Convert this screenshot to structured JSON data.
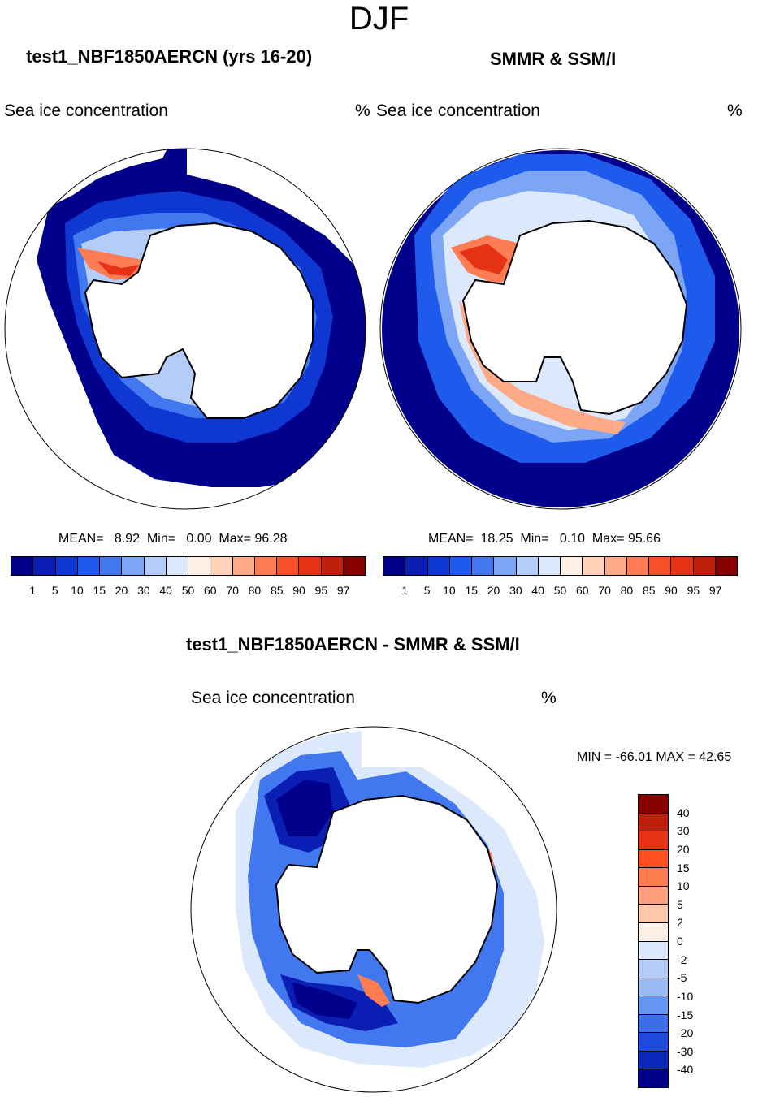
{
  "figure": {
    "season": "DJF",
    "left_panel": {
      "title": "test1_NBF1850AERCN (yrs 16-20)",
      "variable": "Sea ice concentration",
      "units": "%",
      "stats": {
        "mean_label": "MEAN=",
        "mean": "8.92",
        "min_label": "Min=",
        "min": "0.00",
        "max_label": "Max=",
        "max": "96.28"
      }
    },
    "right_panel": {
      "title": "SMMR & SSM/I",
      "variable": "Sea ice concentration",
      "units": "%",
      "stats": {
        "mean_label": "MEAN=",
        "mean": "18.25",
        "min_label": "Min=",
        "min": "0.10",
        "max_label": "Max=",
        "max": "95.66"
      }
    },
    "diff_panel": {
      "title": "test1_NBF1850AERCN - SMMR & SSM/I",
      "variable": "Sea ice concentration",
      "units": "%",
      "minmax": "MIN = -66.01 MAX =  42.65"
    }
  },
  "chart_data": [
    {
      "type": "heatmap",
      "title": "test1_NBF1850AERCN (yrs 16-20)",
      "projection": "south polar stereographic",
      "variable": "Sea ice concentration (%)",
      "mean": 8.92,
      "min": 0.0,
      "max": 96.28,
      "colorbar_levels": [
        1,
        5,
        10,
        15,
        20,
        30,
        40,
        50,
        60,
        70,
        80,
        85,
        90,
        95,
        97
      ],
      "colorbar_colors": [
        "#00008b",
        "#0a1eb4",
        "#0f37d2",
        "#1e5aeb",
        "#4178f0",
        "#7da5f5",
        "#b4ccf8",
        "#dce8fb",
        "#fff0e6",
        "#ffd2b9",
        "#ffaa87",
        "#ff7d55",
        "#f55028",
        "#e63214",
        "#be1e0a",
        "#870000"
      ]
    },
    {
      "type": "heatmap",
      "title": "SMMR & SSM/I",
      "projection": "south polar stereographic",
      "variable": "Sea ice concentration (%)",
      "mean": 18.25,
      "min": 0.1,
      "max": 95.66,
      "colorbar_levels": [
        1,
        5,
        10,
        15,
        20,
        30,
        40,
        50,
        60,
        70,
        80,
        85,
        90,
        95,
        97
      ],
      "colorbar_colors": [
        "#00008b",
        "#0a1eb4",
        "#0f37d2",
        "#1e5aeb",
        "#4178f0",
        "#7da5f5",
        "#b4ccf8",
        "#dce8fb",
        "#fff0e6",
        "#ffd2b9",
        "#ffaa87",
        "#ff7d55",
        "#f55028",
        "#e63214",
        "#be1e0a",
        "#870000"
      ]
    },
    {
      "type": "heatmap",
      "title": "test1_NBF1850AERCN - SMMR & SSM/I",
      "projection": "south polar stereographic",
      "variable": "Sea ice concentration difference (%)",
      "min": -66.01,
      "max": 42.65,
      "colorbar_levels": [
        40,
        30,
        20,
        15,
        10,
        5,
        2,
        0,
        -2,
        -5,
        -10,
        -15,
        -20,
        -30,
        -40
      ],
      "colorbar_colors": [
        "#870000",
        "#be1e0a",
        "#e63214",
        "#ff501e",
        "#ff7d50",
        "#ffa07d",
        "#ffc8aa",
        "#fff0e6",
        "#dce8fb",
        "#b4ccf8",
        "#9abcf5",
        "#6495f0",
        "#3c6eeb",
        "#1e4bdc",
        "#0a28b9",
        "#00008b"
      ]
    }
  ]
}
